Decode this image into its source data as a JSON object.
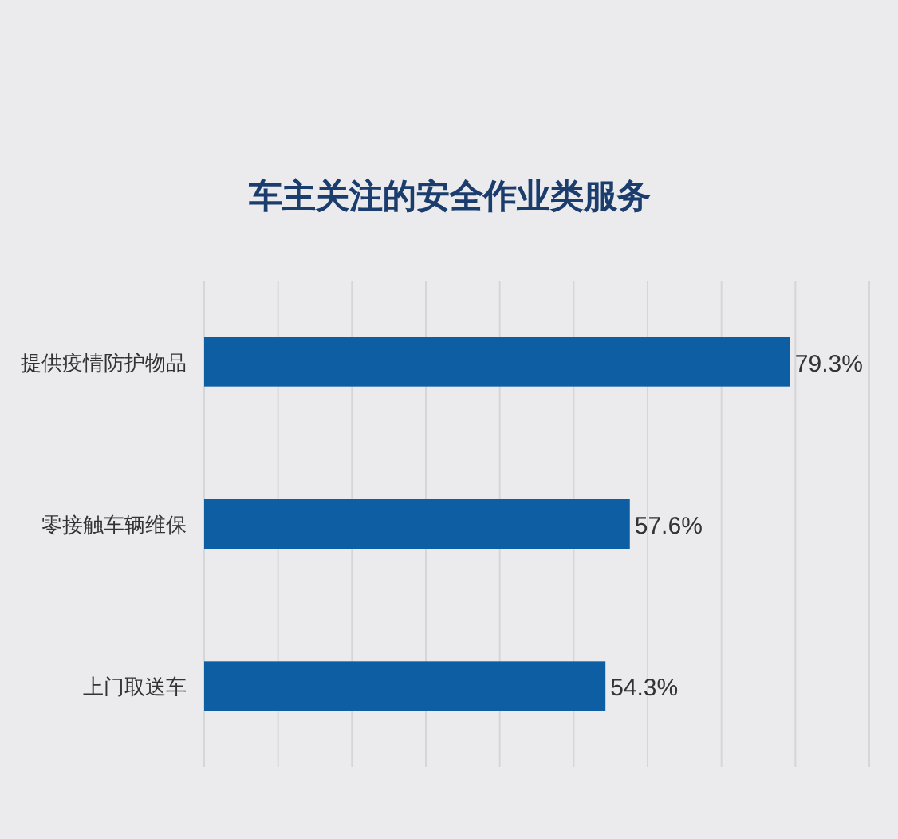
{
  "chart_data": {
    "type": "bar",
    "orientation": "horizontal",
    "title": "车主关注的安全作业类服务",
    "categories": [
      "提供疫情防护物品",
      "零接触车辆维保",
      "上门取送车"
    ],
    "values": [
      79.3,
      57.6,
      54.3
    ],
    "value_labels": [
      "79.3%",
      "57.6%",
      "54.3%"
    ],
    "color": "#0e5ea4",
    "xlim": [
      0,
      90
    ],
    "xticks": [
      {
        "value": 0,
        "label": null
      },
      {
        "value": 10,
        "label": null
      },
      {
        "value": 20,
        "label": null
      },
      {
        "value": 30,
        "label": null
      },
      {
        "value": 40,
        "label": null
      },
      {
        "value": 50,
        "label": null
      },
      {
        "value": 60,
        "label": null
      },
      {
        "value": 70,
        "label": null
      },
      {
        "value": 80,
        "label": null
      },
      {
        "value": 90,
        "label": null
      }
    ],
    "grid": "x",
    "tick_labels": "y"
  }
}
